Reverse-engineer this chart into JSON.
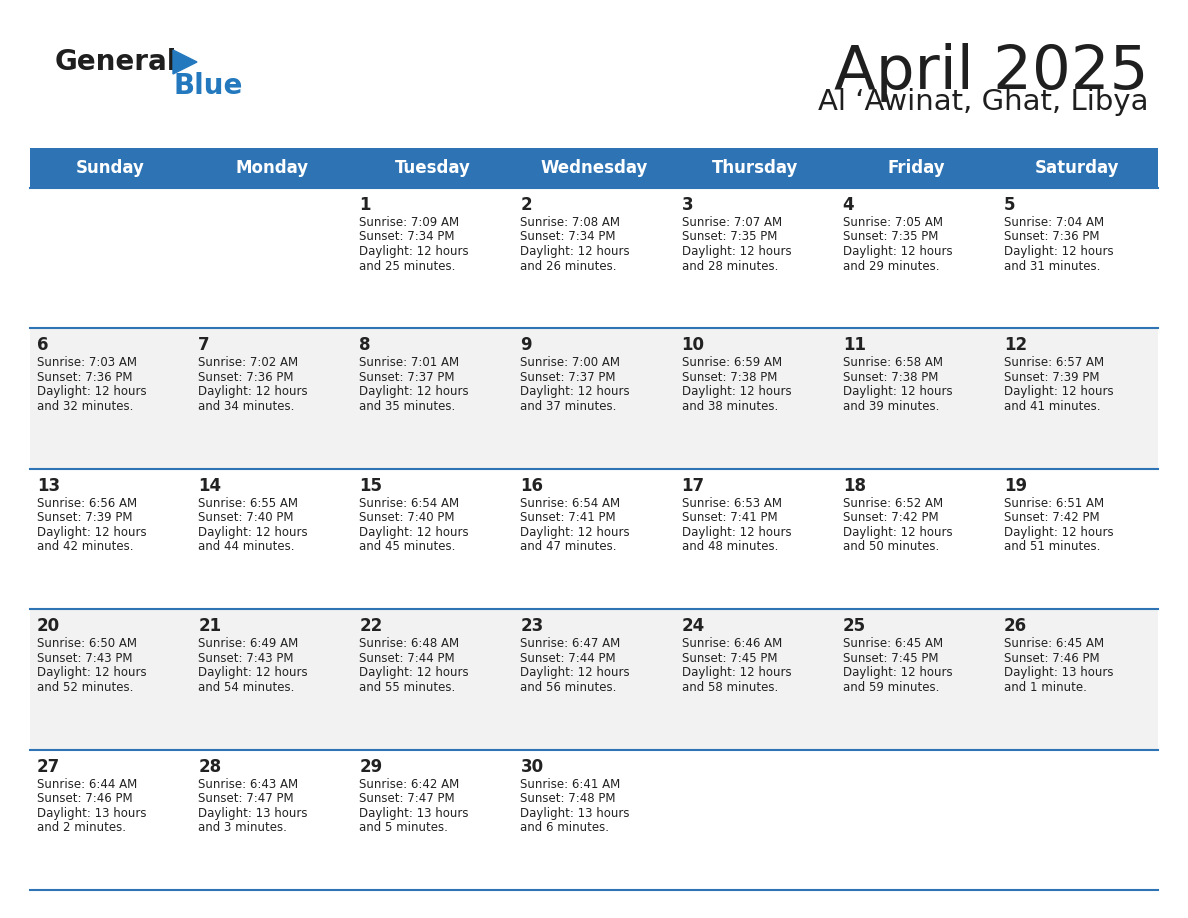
{
  "title": "April 2025",
  "subtitle": "Al ‘Awinat, Ghat, Libya",
  "header_bg_color": "#2E74B5",
  "header_text_color": "#FFFFFF",
  "day_headers": [
    "Sunday",
    "Monday",
    "Tuesday",
    "Wednesday",
    "Thursday",
    "Friday",
    "Saturday"
  ],
  "bg_color": "#FFFFFF",
  "cell_bg_alt": "#F2F2F2",
  "divider_color": "#2E74B5",
  "text_color": "#222222",
  "title_color": "#1F1F1F",
  "logo_general_color": "#1F1F1F",
  "logo_blue_color": "#2479BE",
  "calendar_data": [
    [
      null,
      null,
      {
        "day": 1,
        "sunrise": "7:09 AM",
        "sunset": "7:34 PM",
        "dl1": "Daylight: 12 hours",
        "dl2": "and 25 minutes."
      },
      {
        "day": 2,
        "sunrise": "7:08 AM",
        "sunset": "7:34 PM",
        "dl1": "Daylight: 12 hours",
        "dl2": "and 26 minutes."
      },
      {
        "day": 3,
        "sunrise": "7:07 AM",
        "sunset": "7:35 PM",
        "dl1": "Daylight: 12 hours",
        "dl2": "and 28 minutes."
      },
      {
        "day": 4,
        "sunrise": "7:05 AM",
        "sunset": "7:35 PM",
        "dl1": "Daylight: 12 hours",
        "dl2": "and 29 minutes."
      },
      {
        "day": 5,
        "sunrise": "7:04 AM",
        "sunset": "7:36 PM",
        "dl1": "Daylight: 12 hours",
        "dl2": "and 31 minutes."
      }
    ],
    [
      {
        "day": 6,
        "sunrise": "7:03 AM",
        "sunset": "7:36 PM",
        "dl1": "Daylight: 12 hours",
        "dl2": "and 32 minutes."
      },
      {
        "day": 7,
        "sunrise": "7:02 AM",
        "sunset": "7:36 PM",
        "dl1": "Daylight: 12 hours",
        "dl2": "and 34 minutes."
      },
      {
        "day": 8,
        "sunrise": "7:01 AM",
        "sunset": "7:37 PM",
        "dl1": "Daylight: 12 hours",
        "dl2": "and 35 minutes."
      },
      {
        "day": 9,
        "sunrise": "7:00 AM",
        "sunset": "7:37 PM",
        "dl1": "Daylight: 12 hours",
        "dl2": "and 37 minutes."
      },
      {
        "day": 10,
        "sunrise": "6:59 AM",
        "sunset": "7:38 PM",
        "dl1": "Daylight: 12 hours",
        "dl2": "and 38 minutes."
      },
      {
        "day": 11,
        "sunrise": "6:58 AM",
        "sunset": "7:38 PM",
        "dl1": "Daylight: 12 hours",
        "dl2": "and 39 minutes."
      },
      {
        "day": 12,
        "sunrise": "6:57 AM",
        "sunset": "7:39 PM",
        "dl1": "Daylight: 12 hours",
        "dl2": "and 41 minutes."
      }
    ],
    [
      {
        "day": 13,
        "sunrise": "6:56 AM",
        "sunset": "7:39 PM",
        "dl1": "Daylight: 12 hours",
        "dl2": "and 42 minutes."
      },
      {
        "day": 14,
        "sunrise": "6:55 AM",
        "sunset": "7:40 PM",
        "dl1": "Daylight: 12 hours",
        "dl2": "and 44 minutes."
      },
      {
        "day": 15,
        "sunrise": "6:54 AM",
        "sunset": "7:40 PM",
        "dl1": "Daylight: 12 hours",
        "dl2": "and 45 minutes."
      },
      {
        "day": 16,
        "sunrise": "6:54 AM",
        "sunset": "7:41 PM",
        "dl1": "Daylight: 12 hours",
        "dl2": "and 47 minutes."
      },
      {
        "day": 17,
        "sunrise": "6:53 AM",
        "sunset": "7:41 PM",
        "dl1": "Daylight: 12 hours",
        "dl2": "and 48 minutes."
      },
      {
        "day": 18,
        "sunrise": "6:52 AM",
        "sunset": "7:42 PM",
        "dl1": "Daylight: 12 hours",
        "dl2": "and 50 minutes."
      },
      {
        "day": 19,
        "sunrise": "6:51 AM",
        "sunset": "7:42 PM",
        "dl1": "Daylight: 12 hours",
        "dl2": "and 51 minutes."
      }
    ],
    [
      {
        "day": 20,
        "sunrise": "6:50 AM",
        "sunset": "7:43 PM",
        "dl1": "Daylight: 12 hours",
        "dl2": "and 52 minutes."
      },
      {
        "day": 21,
        "sunrise": "6:49 AM",
        "sunset": "7:43 PM",
        "dl1": "Daylight: 12 hours",
        "dl2": "and 54 minutes."
      },
      {
        "day": 22,
        "sunrise": "6:48 AM",
        "sunset": "7:44 PM",
        "dl1": "Daylight: 12 hours",
        "dl2": "and 55 minutes."
      },
      {
        "day": 23,
        "sunrise": "6:47 AM",
        "sunset": "7:44 PM",
        "dl1": "Daylight: 12 hours",
        "dl2": "and 56 minutes."
      },
      {
        "day": 24,
        "sunrise": "6:46 AM",
        "sunset": "7:45 PM",
        "dl1": "Daylight: 12 hours",
        "dl2": "and 58 minutes."
      },
      {
        "day": 25,
        "sunrise": "6:45 AM",
        "sunset": "7:45 PM",
        "dl1": "Daylight: 12 hours",
        "dl2": "and 59 minutes."
      },
      {
        "day": 26,
        "sunrise": "6:45 AM",
        "sunset": "7:46 PM",
        "dl1": "Daylight: 13 hours",
        "dl2": "and 1 minute."
      }
    ],
    [
      {
        "day": 27,
        "sunrise": "6:44 AM",
        "sunset": "7:46 PM",
        "dl1": "Daylight: 13 hours",
        "dl2": "and 2 minutes."
      },
      {
        "day": 28,
        "sunrise": "6:43 AM",
        "sunset": "7:47 PM",
        "dl1": "Daylight: 13 hours",
        "dl2": "and 3 minutes."
      },
      {
        "day": 29,
        "sunrise": "6:42 AM",
        "sunset": "7:47 PM",
        "dl1": "Daylight: 13 hours",
        "dl2": "and 5 minutes."
      },
      {
        "day": 30,
        "sunrise": "6:41 AM",
        "sunset": "7:48 PM",
        "dl1": "Daylight: 13 hours",
        "dl2": "and 6 minutes."
      },
      null,
      null,
      null
    ]
  ]
}
